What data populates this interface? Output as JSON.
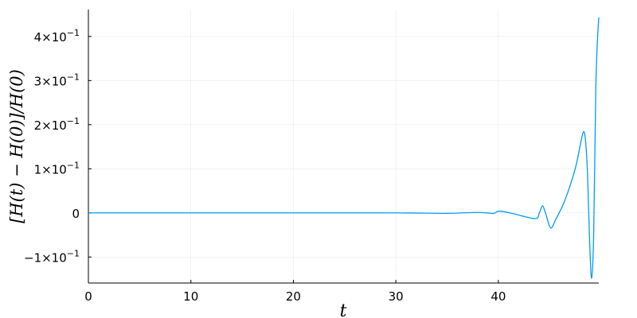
{
  "chart_data": {
    "type": "line",
    "title": "",
    "xlabel": "t",
    "ylabel": "[H(t) − H(0)]/H(0)",
    "xlim": [
      0,
      49.8
    ],
    "ylim": [
      -0.159,
      0.461
    ],
    "grid": true,
    "legend": "none",
    "x_ticks": [
      0,
      10,
      20,
      30,
      40
    ],
    "x_tick_labels": [
      "0",
      "10",
      "20",
      "30",
      "40"
    ],
    "y_ticks": [
      -0.1,
      0,
      0.1,
      0.2,
      0.3,
      0.4
    ],
    "y_tick_labels": [
      {
        "mant": "−1×10",
        "exp": "−1"
      },
      {
        "mant": "0",
        "exp": ""
      },
      {
        "mant": "1×10",
        "exp": "−1"
      },
      {
        "mant": "2×10",
        "exp": "−1"
      },
      {
        "mant": "3×10",
        "exp": "−1"
      },
      {
        "mant": "4×10",
        "exp": "−1"
      }
    ],
    "series": [
      {
        "color": "#009af9",
        "x": [
          0,
          10,
          20,
          30,
          35,
          38,
          39.5,
          40.1,
          41.5,
          43.6,
          44.0,
          44.3,
          44.6,
          45.1,
          45.6,
          46.5,
          47.5,
          48.0,
          48.3,
          48.5,
          48.7,
          48.9,
          49.1,
          49.3,
          49.5,
          49.65,
          49.8
        ],
        "y": [
          0,
          0,
          0,
          0,
          -0.001,
          0.001,
          -0.001,
          0.004,
          -0.002,
          -0.013,
          0.0,
          0.016,
          0.0,
          -0.034,
          -0.015,
          0.029,
          0.1,
          0.155,
          0.184,
          0.165,
          0.09,
          -0.06,
          -0.148,
          -0.05,
          0.27,
          0.38,
          0.443
        ]
      }
    ]
  }
}
